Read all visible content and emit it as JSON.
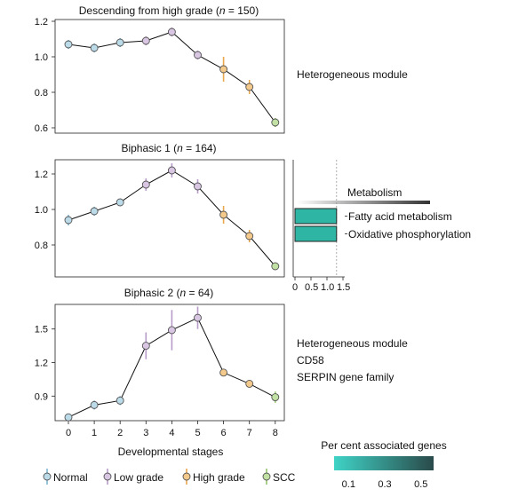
{
  "chart_data": [
    {
      "type": "line",
      "title_main": "Descending from high grade (",
      "title_n": "n",
      "title_rest": " = 150)",
      "x": [
        0,
        1,
        2,
        3,
        4,
        5,
        6,
        7,
        8
      ],
      "y": [
        1.07,
        1.05,
        1.08,
        1.09,
        1.14,
        1.01,
        0.93,
        0.83,
        0.63
      ],
      "err": [
        0.025,
        0.025,
        0.025,
        0.025,
        0.025,
        0.025,
        0.07,
        0.04,
        0.025
      ],
      "ylim": [
        0.57,
        1.21
      ],
      "yticks": [
        {
          "v": 0.6,
          "label": "0.6"
        },
        {
          "v": 0.8,
          "label": "0.8"
        },
        {
          "v": 1.0,
          "label": "1.0"
        },
        {
          "v": 1.2,
          "label": "1.2"
        }
      ],
      "annotations": [
        "Heterogeneous module"
      ]
    },
    {
      "type": "line",
      "title_main": "Biphasic 1 (",
      "title_n": "n",
      "title_rest": " = 164)",
      "x": [
        0,
        1,
        2,
        3,
        4,
        5,
        6,
        7,
        8
      ],
      "y": [
        0.94,
        0.99,
        1.04,
        1.14,
        1.22,
        1.13,
        0.97,
        0.85,
        0.68
      ],
      "err": [
        0.03,
        0.025,
        0.02,
        0.035,
        0.04,
        0.04,
        0.05,
        0.035,
        0.02
      ],
      "ylim": [
        0.62,
        1.28
      ],
      "yticks": [
        {
          "v": 0.8,
          "label": "0.8"
        },
        {
          "v": 1.0,
          "label": "1.0"
        },
        {
          "v": 1.2,
          "label": "1.2"
        }
      ],
      "annotations": []
    },
    {
      "type": "line",
      "title_main": "Biphasic 2 (",
      "title_n": "n",
      "title_rest": " = 64)",
      "x": [
        0,
        1,
        2,
        3,
        4,
        5,
        6,
        7,
        8
      ],
      "y": [
        0.71,
        0.82,
        0.86,
        1.35,
        1.49,
        1.6,
        1.11,
        1.01,
        0.89
      ],
      "err": [
        0.03,
        0.04,
        0.04,
        0.12,
        0.18,
        0.1,
        0.03,
        0.03,
        0.05
      ],
      "ylim": [
        0.68,
        1.72
      ],
      "yticks": [
        {
          "v": 0.9,
          "label": "0.9"
        },
        {
          "v": 1.2,
          "label": "1.2"
        },
        {
          "v": 1.5,
          "label": "1.5"
        }
      ],
      "xlabel": "Developmental stages",
      "xticks": [
        "0",
        "1",
        "2",
        "3",
        "4",
        "5",
        "6",
        "7",
        "8"
      ],
      "annotations": [
        "Heterogeneous module",
        "CD58",
        "SERPIN gene family"
      ]
    },
    {
      "type": "bar",
      "orientation": "horizontal",
      "group_label": "Metabolism",
      "categories": [
        "Fatty acid metabolism",
        "Oxidative phosphorylation"
      ],
      "values": [
        1.3,
        1.3
      ],
      "xlim": [
        0,
        1.5
      ],
      "xticks": [
        {
          "v": 0,
          "label": "0"
        },
        {
          "v": 0.5,
          "label": "0.5"
        },
        {
          "v": 1.0,
          "label": "1.0"
        },
        {
          "v": 1.5,
          "label": "1.5"
        }
      ],
      "reference_line": 1.3
    }
  ],
  "stage_colors": [
    "#7fb6d1",
    "#7fb6d1",
    "#7fb6d1",
    "#b79bc9",
    "#b79bc9",
    "#b79bc9",
    "#e9a74c",
    "#e9a74c",
    "#93c56a"
  ],
  "marker_fills": [
    "#bcdbe9",
    "#bcdbe9",
    "#bcdbe9",
    "#d8c6e3",
    "#d8c6e3",
    "#d8c6e3",
    "#f4c98c",
    "#f4c98c",
    "#c2e1a4"
  ],
  "bar_color": "#2fb5a4",
  "legend": [
    {
      "label": "Normal",
      "color": "#7fb6d1",
      "fill": "#bcdbe9"
    },
    {
      "label": "Low grade",
      "color": "#b79bc9",
      "fill": "#d8c6e3"
    },
    {
      "label": "High grade",
      "color": "#e9a74c",
      "fill": "#f4c98c"
    },
    {
      "label": "SCC",
      "color": "#93c56a",
      "fill": "#c2e1a4"
    }
  ],
  "colorbar": {
    "title": "Per cent associated genes",
    "ticks": [
      "0.1",
      "0.3",
      "0.5"
    ],
    "range": [
      0.02,
      0.57
    ],
    "tick_values": [
      0.1,
      0.3,
      0.5
    ],
    "colors": [
      "#3fd3c6",
      "#2a4a4a"
    ]
  }
}
